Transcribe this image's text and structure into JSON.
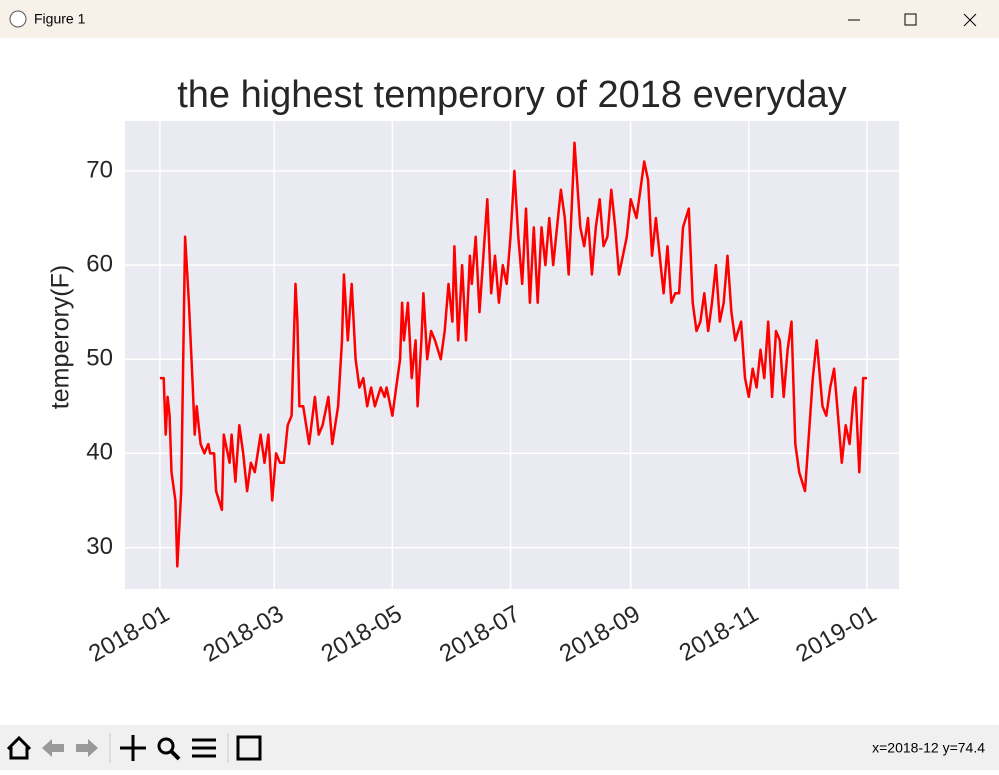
{
  "window": {
    "title": "Figure 1"
  },
  "status": "x=2018-12 y=74.4",
  "chart_data": {
    "type": "line",
    "title": "the highest temperory of 2018 everyday",
    "ylabel": "temperory(F)",
    "x": [
      0,
      2,
      3,
      4,
      5,
      6,
      8,
      9,
      11,
      13,
      15,
      17,
      18,
      19,
      21,
      23,
      25,
      26,
      28,
      29,
      32,
      33,
      36,
      37,
      39,
      41,
      43,
      45,
      47,
      49,
      52,
      54,
      56,
      58,
      60,
      62,
      64,
      66,
      68,
      70,
      71,
      72,
      74,
      77,
      80,
      82,
      84,
      87,
      89,
      92,
      94,
      95,
      97,
      99,
      101,
      103,
      105,
      107,
      109,
      111,
      114,
      116,
      117,
      120,
      122,
      124,
      125,
      126,
      128,
      130,
      132,
      133,
      135,
      136,
      138,
      140,
      142,
      145,
      147,
      149,
      151,
      152,
      154,
      156,
      158,
      160,
      161,
      163,
      165,
      167,
      169,
      171,
      173,
      175,
      177,
      179,
      181,
      183,
      185,
      187,
      189,
      191,
      193,
      195,
      197,
      199,
      201,
      203,
      205,
      207,
      209,
      211,
      213,
      214,
      217,
      219,
      221,
      223,
      225,
      227,
      229,
      231,
      233,
      235,
      237,
      239,
      241,
      243,
      246,
      248,
      250,
      252,
      254,
      256,
      258,
      260,
      262,
      264,
      266,
      268,
      270,
      273,
      275,
      277,
      279,
      281,
      283,
      285,
      287,
      289,
      291,
      293,
      295,
      297,
      300,
      302,
      304,
      306,
      308,
      310,
      312,
      314,
      316,
      318,
      320,
      322,
      324,
      326,
      328,
      330,
      333,
      335,
      337,
      339,
      342,
      344,
      346,
      348,
      350,
      352,
      354,
      356,
      358,
      359,
      361,
      363,
      365
    ],
    "series": [
      {
        "name": "temperory",
        "color": "#ff0000",
        "values": [
          48,
          48,
          42,
          46,
          44,
          38,
          35,
          28,
          36,
          63,
          56,
          47,
          42,
          45,
          41,
          40,
          41,
          40,
          40,
          36,
          34,
          42,
          39,
          42,
          37,
          43,
          40,
          36,
          39,
          38,
          42,
          39,
          42,
          35,
          40,
          39,
          39,
          43,
          44,
          58,
          54,
          45,
          45,
          41,
          46,
          42,
          43,
          46,
          41,
          45,
          52,
          59,
          52,
          58,
          50,
          47,
          48,
          45,
          47,
          45,
          47,
          46,
          47,
          44,
          47,
          50,
          56,
          52,
          56,
          48,
          52,
          45,
          52,
          57,
          50,
          53,
          52,
          50,
          53,
          58,
          54,
          62,
          52,
          60,
          52,
          61,
          58,
          63,
          55,
          61,
          67,
          57,
          61,
          56,
          60,
          58,
          63,
          70,
          63,
          58,
          66,
          56,
          64,
          56,
          64,
          60,
          65,
          60,
          64,
          68,
          65,
          59,
          68,
          73,
          64,
          62,
          65,
          59,
          64,
          67,
          62,
          63,
          68,
          64,
          59,
          61,
          63,
          67,
          65,
          68,
          71,
          69,
          61,
          65,
          61,
          57,
          62,
          56,
          57,
          57,
          64,
          66,
          56,
          53,
          54,
          57,
          53,
          56,
          60,
          54,
          56,
          61,
          55,
          52,
          54,
          48,
          46,
          49,
          47,
          51,
          48,
          54,
          46,
          53,
          52,
          46,
          51,
          54,
          41,
          38,
          36,
          42,
          48,
          52,
          45,
          44,
          47,
          49,
          44,
          39,
          43,
          41,
          46,
          47,
          38,
          48,
          48
        ]
      }
    ],
    "xlim": [
      -18,
      381.5
    ],
    "xticks": [
      {
        "value": 0,
        "label": "2018-01"
      },
      {
        "value": 59,
        "label": "2018-03"
      },
      {
        "value": 120,
        "label": "2018-05"
      },
      {
        "value": 181,
        "label": "2018-07"
      },
      {
        "value": 243,
        "label": "2018-09"
      },
      {
        "value": 304,
        "label": "2018-11"
      },
      {
        "value": 365,
        "label": "2019-01"
      }
    ],
    "ylim": [
      25.6,
      75.3
    ],
    "yticks": [
      30,
      40,
      50,
      60,
      70
    ],
    "grid": true
  }
}
